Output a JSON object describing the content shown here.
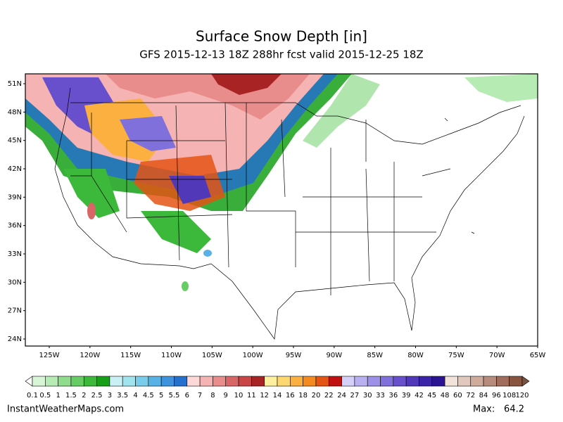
{
  "header": {
    "title": "Surface Snow Depth [in]",
    "subtitle": "GFS 2015-12-13 18Z 288hr fcst valid 2015-12-25 18Z"
  },
  "map": {
    "lat_labels": [
      "51N",
      "48N",
      "45N",
      "42N",
      "39N",
      "36N",
      "33N",
      "30N",
      "27N",
      "24N"
    ],
    "lon_labels": [
      "125W",
      "120W",
      "115W",
      "110W",
      "105W",
      "100W",
      "95W",
      "90W",
      "85W",
      "80W",
      "75W",
      "70W",
      "65W"
    ]
  },
  "legend": {
    "labels": [
      "0.1",
      "0.5",
      "1",
      "1.5",
      "2",
      "2.5",
      "3",
      "3.5",
      "4",
      "4.5",
      "5",
      "5.5",
      "6",
      "7",
      "8",
      "9",
      "10",
      "11",
      "12",
      "14",
      "16",
      "18",
      "20",
      "22",
      "24",
      "27",
      "30",
      "33",
      "36",
      "39",
      "42",
      "45",
      "48",
      "60",
      "72",
      "84",
      "96",
      "108",
      "120"
    ],
    "below_color": "#ffffff",
    "above_color": "#7a5040",
    "colors": [
      "#d8f5d8",
      "#b6ebb4",
      "#8fdc8c",
      "#67cc63",
      "#3cb83a",
      "#17a017",
      "#c8f0f5",
      "#a0e4f0",
      "#78cdea",
      "#58b2e6",
      "#3d93dd",
      "#2570cc",
      "#fcd8d8",
      "#f5b3b3",
      "#e88c8c",
      "#d96666",
      "#c84646",
      "#a82424",
      "#fff0a0",
      "#fdd870",
      "#fbb040",
      "#f58a20",
      "#e45414",
      "#c01010",
      "#d4d0f8",
      "#b8b0f0",
      "#9c90e8",
      "#8070dc",
      "#6850cc",
      "#5038b8",
      "#3c24a8",
      "#2a1494",
      "#f2e2da",
      "#e2c8bc",
      "#cfab9c",
      "#b88c7c",
      "#a06c5c",
      "#885440"
    ]
  },
  "footer": {
    "source": "InstantWeatherMaps.com",
    "max_label": "Max:",
    "max_value": 64.2
  }
}
